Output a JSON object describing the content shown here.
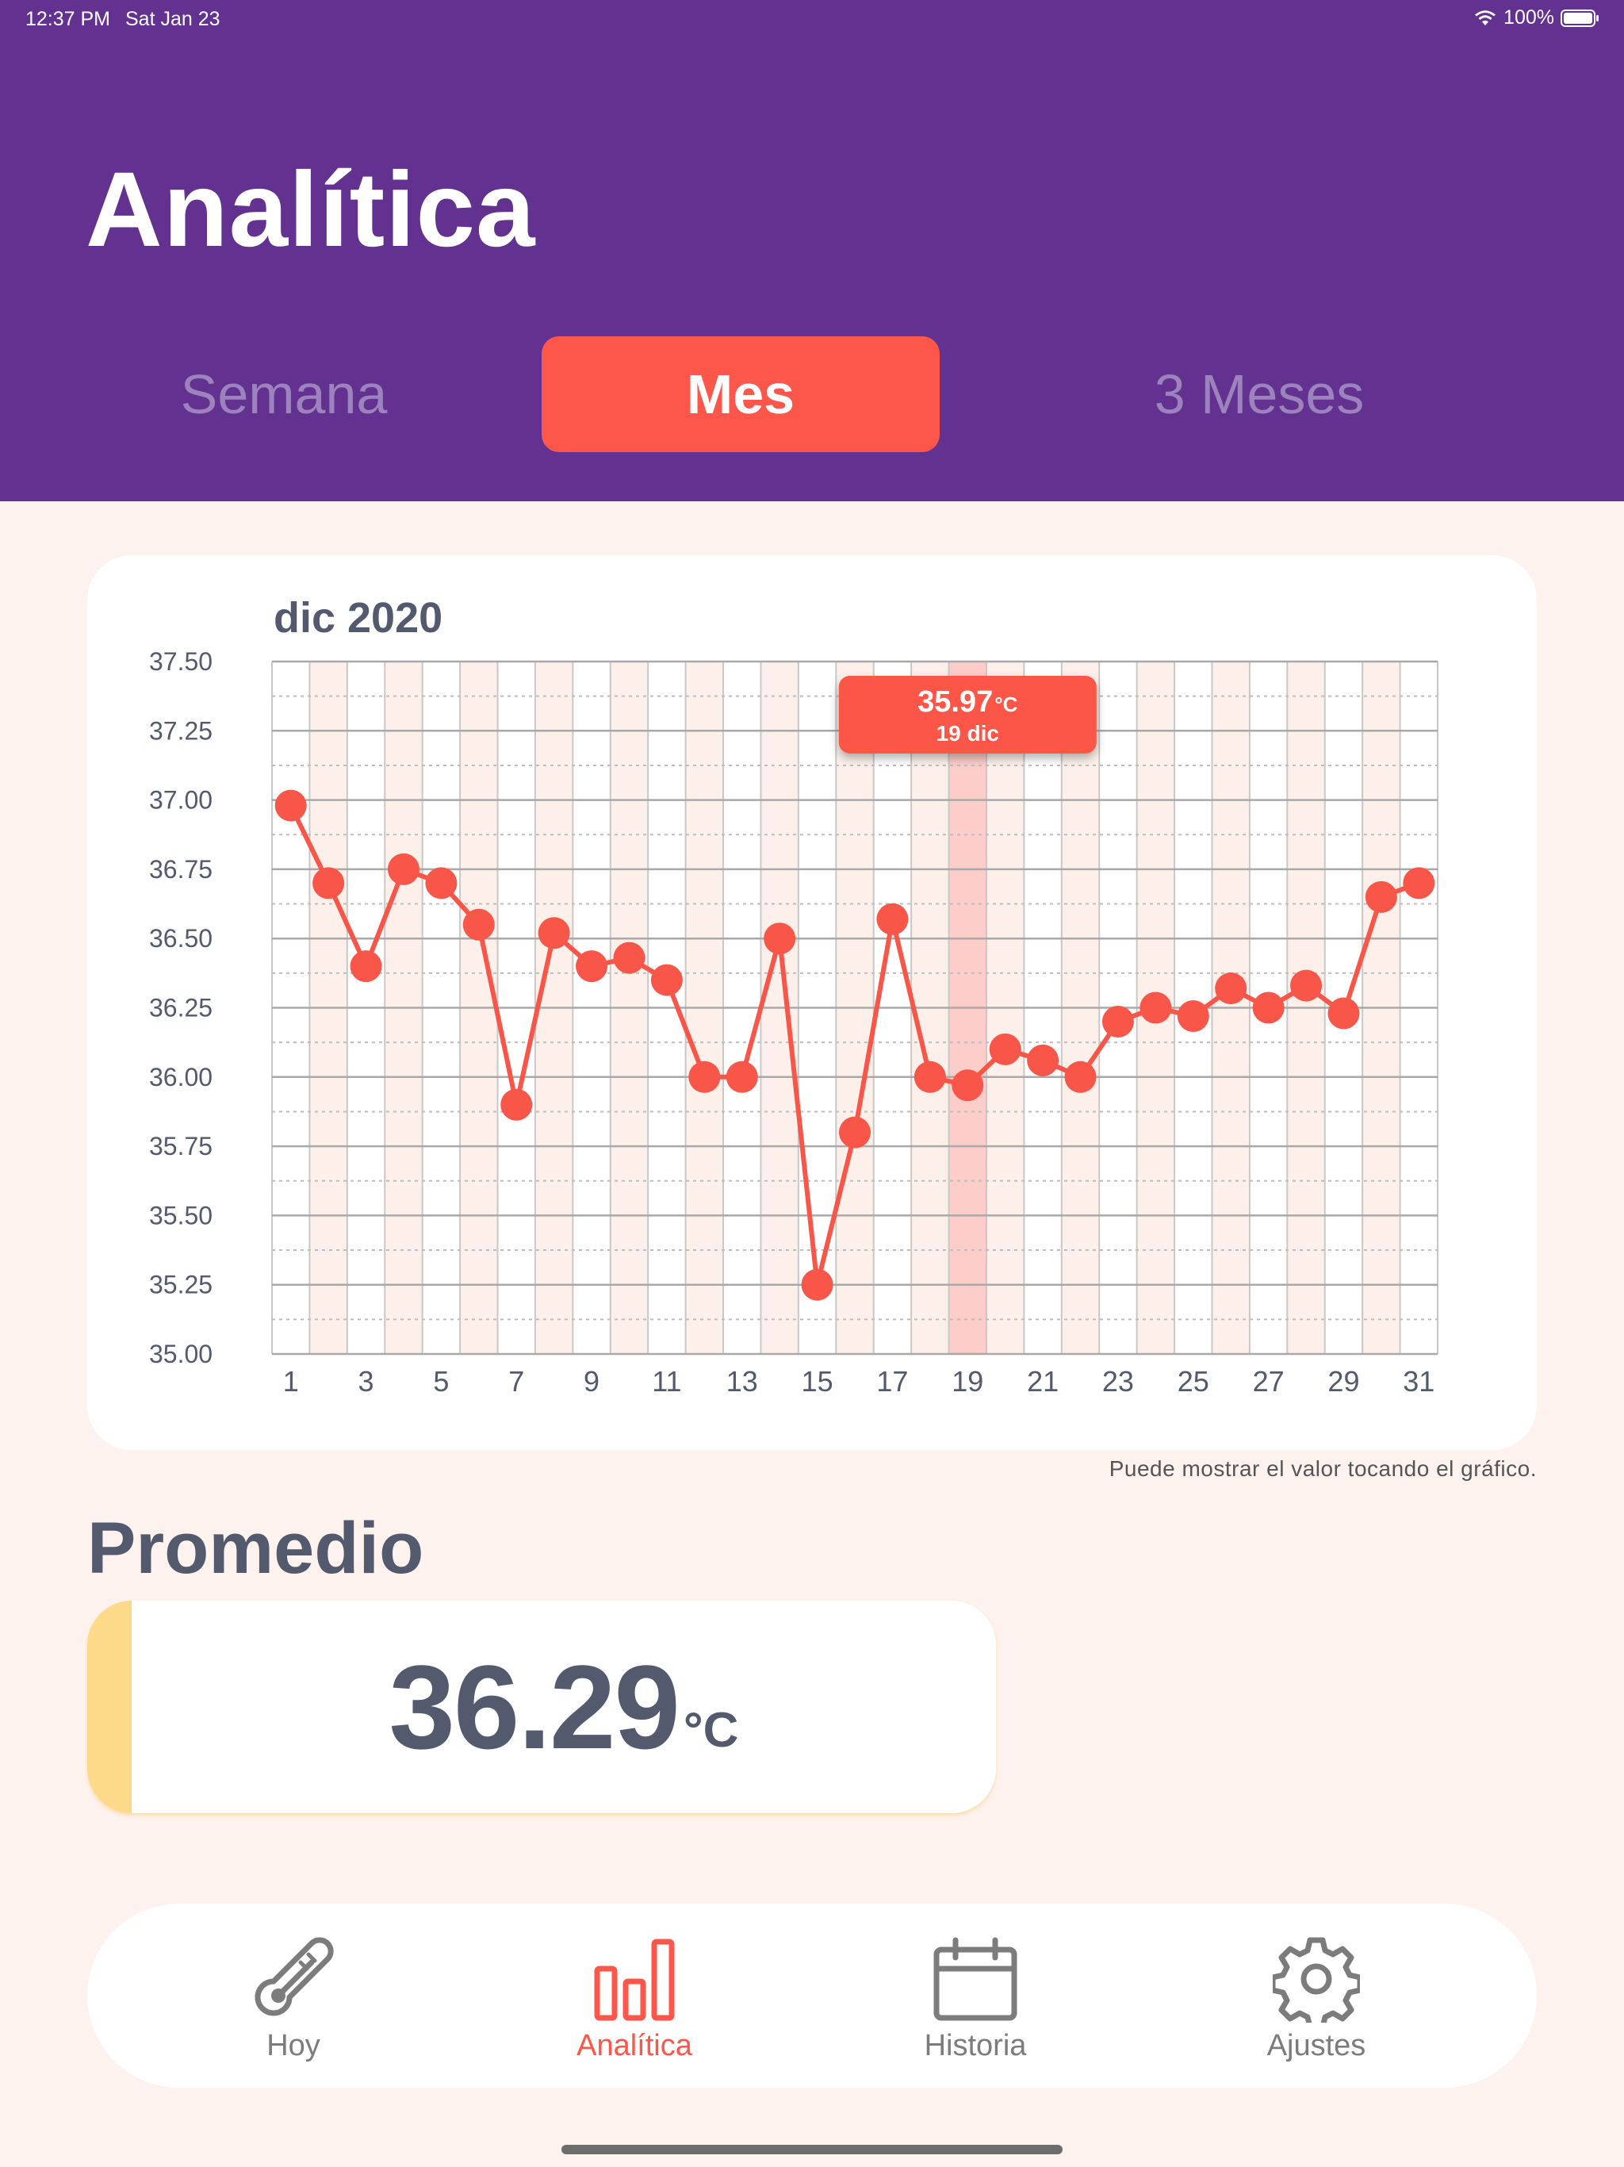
{
  "status_bar": {
    "time": "12:37 PM",
    "date": "Sat Jan 23",
    "battery": "100%"
  },
  "header": {
    "title": "Analítica",
    "segments": [
      {
        "label": "Semana",
        "selected": false
      },
      {
        "label": "Mes",
        "selected": true
      },
      {
        "label": "3 Meses",
        "selected": false
      }
    ]
  },
  "chart_data": {
    "type": "line",
    "title": "dic 2020",
    "ylim": [
      35.0,
      37.5
    ],
    "y_ticks": [
      "35.00",
      "35.25",
      "35.50",
      "35.75",
      "36.00",
      "36.25",
      "36.50",
      "36.75",
      "37.00",
      "37.25",
      "37.50"
    ],
    "x_ticks": [
      "1",
      "3",
      "5",
      "7",
      "9",
      "11",
      "13",
      "15",
      "17",
      "19",
      "21",
      "23",
      "25",
      "27",
      "29",
      "31"
    ],
    "x": [
      1,
      2,
      3,
      4,
      5,
      6,
      7,
      8,
      9,
      10,
      11,
      12,
      13,
      14,
      15,
      16,
      17,
      18,
      19,
      20,
      21,
      22,
      23,
      24,
      25,
      26,
      27,
      28,
      29,
      30,
      31
    ],
    "values": [
      36.98,
      36.7,
      36.4,
      36.75,
      36.7,
      36.55,
      35.9,
      36.52,
      36.4,
      36.43,
      36.35,
      36.0,
      36.0,
      36.5,
      35.25,
      35.8,
      36.57,
      36.0,
      35.97,
      36.1,
      36.06,
      36.0,
      36.2,
      36.25,
      36.22,
      36.32,
      36.25,
      36.33,
      36.23,
      36.65,
      36.7
    ],
    "grid": true,
    "line_color": "#F9564A",
    "tooltip": {
      "day": 19,
      "value": "35.97",
      "unit": "°C",
      "label": "19 dic"
    }
  },
  "hint": "Puede mostrar el valor tocando el gráfico.",
  "average": {
    "title": "Promedio",
    "value": "36.29",
    "unit": "°C"
  },
  "tabs": [
    {
      "label": "Hoy",
      "icon": "thermometer-icon",
      "active": false
    },
    {
      "label": "Analítica",
      "icon": "bar-chart-icon",
      "active": true
    },
    {
      "label": "Historia",
      "icon": "calendar-icon",
      "active": false
    },
    {
      "label": "Ajustes",
      "icon": "gear-icon",
      "active": false
    }
  ],
  "colors": {
    "header": "#633290",
    "accent": "#FC574A",
    "background": "#FDF2EE",
    "text_dark": "#545A6E",
    "avg_accent": "#FDD98A"
  }
}
